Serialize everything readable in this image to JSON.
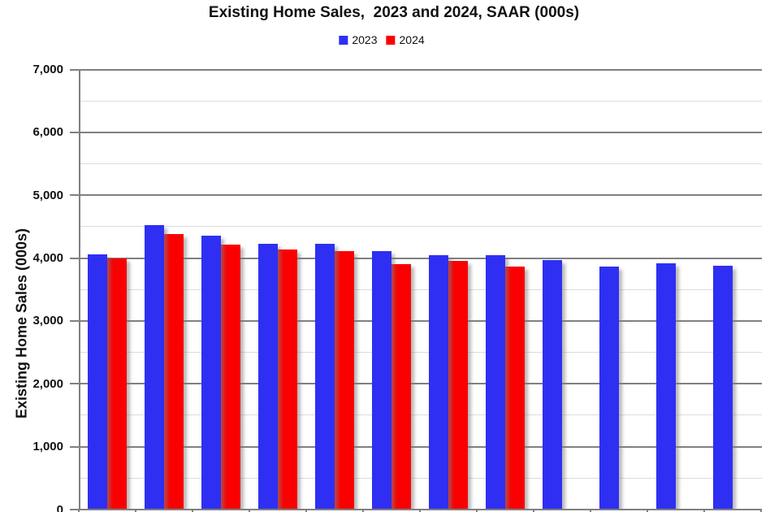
{
  "chart_data": {
    "type": "bar",
    "title": "Existing Home Sales,  2023 and 2024, SAAR (000s)",
    "ylabel": "Existing Home Sales (000s)",
    "ylim": [
      0,
      7000
    ],
    "y_tick_labels": [
      "0",
      "1,000",
      "2,000",
      "3,000",
      "4,000",
      "5,000",
      "6,000",
      "7,000"
    ],
    "y_major_gridline_interval": 1000,
    "y_minor_gridline_interval": 500,
    "grid": true,
    "legend_position": "top-center",
    "n_groups": 12,
    "x_axis_labels_visible": false,
    "series": [
      {
        "name": "2023",
        "color": "#2F2FF3",
        "values": [
          4060,
          4530,
          4360,
          4230,
          4230,
          4110,
          4050,
          4040,
          3970,
          3860,
          3920,
          3880
        ]
      },
      {
        "name": "2024",
        "color": "#FA0000",
        "values": [
          4000,
          4380,
          4220,
          4140,
          4110,
          3900,
          3950,
          3870
        ]
      }
    ]
  },
  "legend": {
    "items": [
      {
        "label": "2023",
        "color": "#2F2FF3"
      },
      {
        "label": "2024",
        "color": "#FA0000"
      }
    ]
  },
  "colors": {
    "background": "#FFFFFF",
    "axis": "#808080",
    "major_gridline": "#808080",
    "minor_gridline": "#DCDCDC",
    "text": "#111111"
  }
}
